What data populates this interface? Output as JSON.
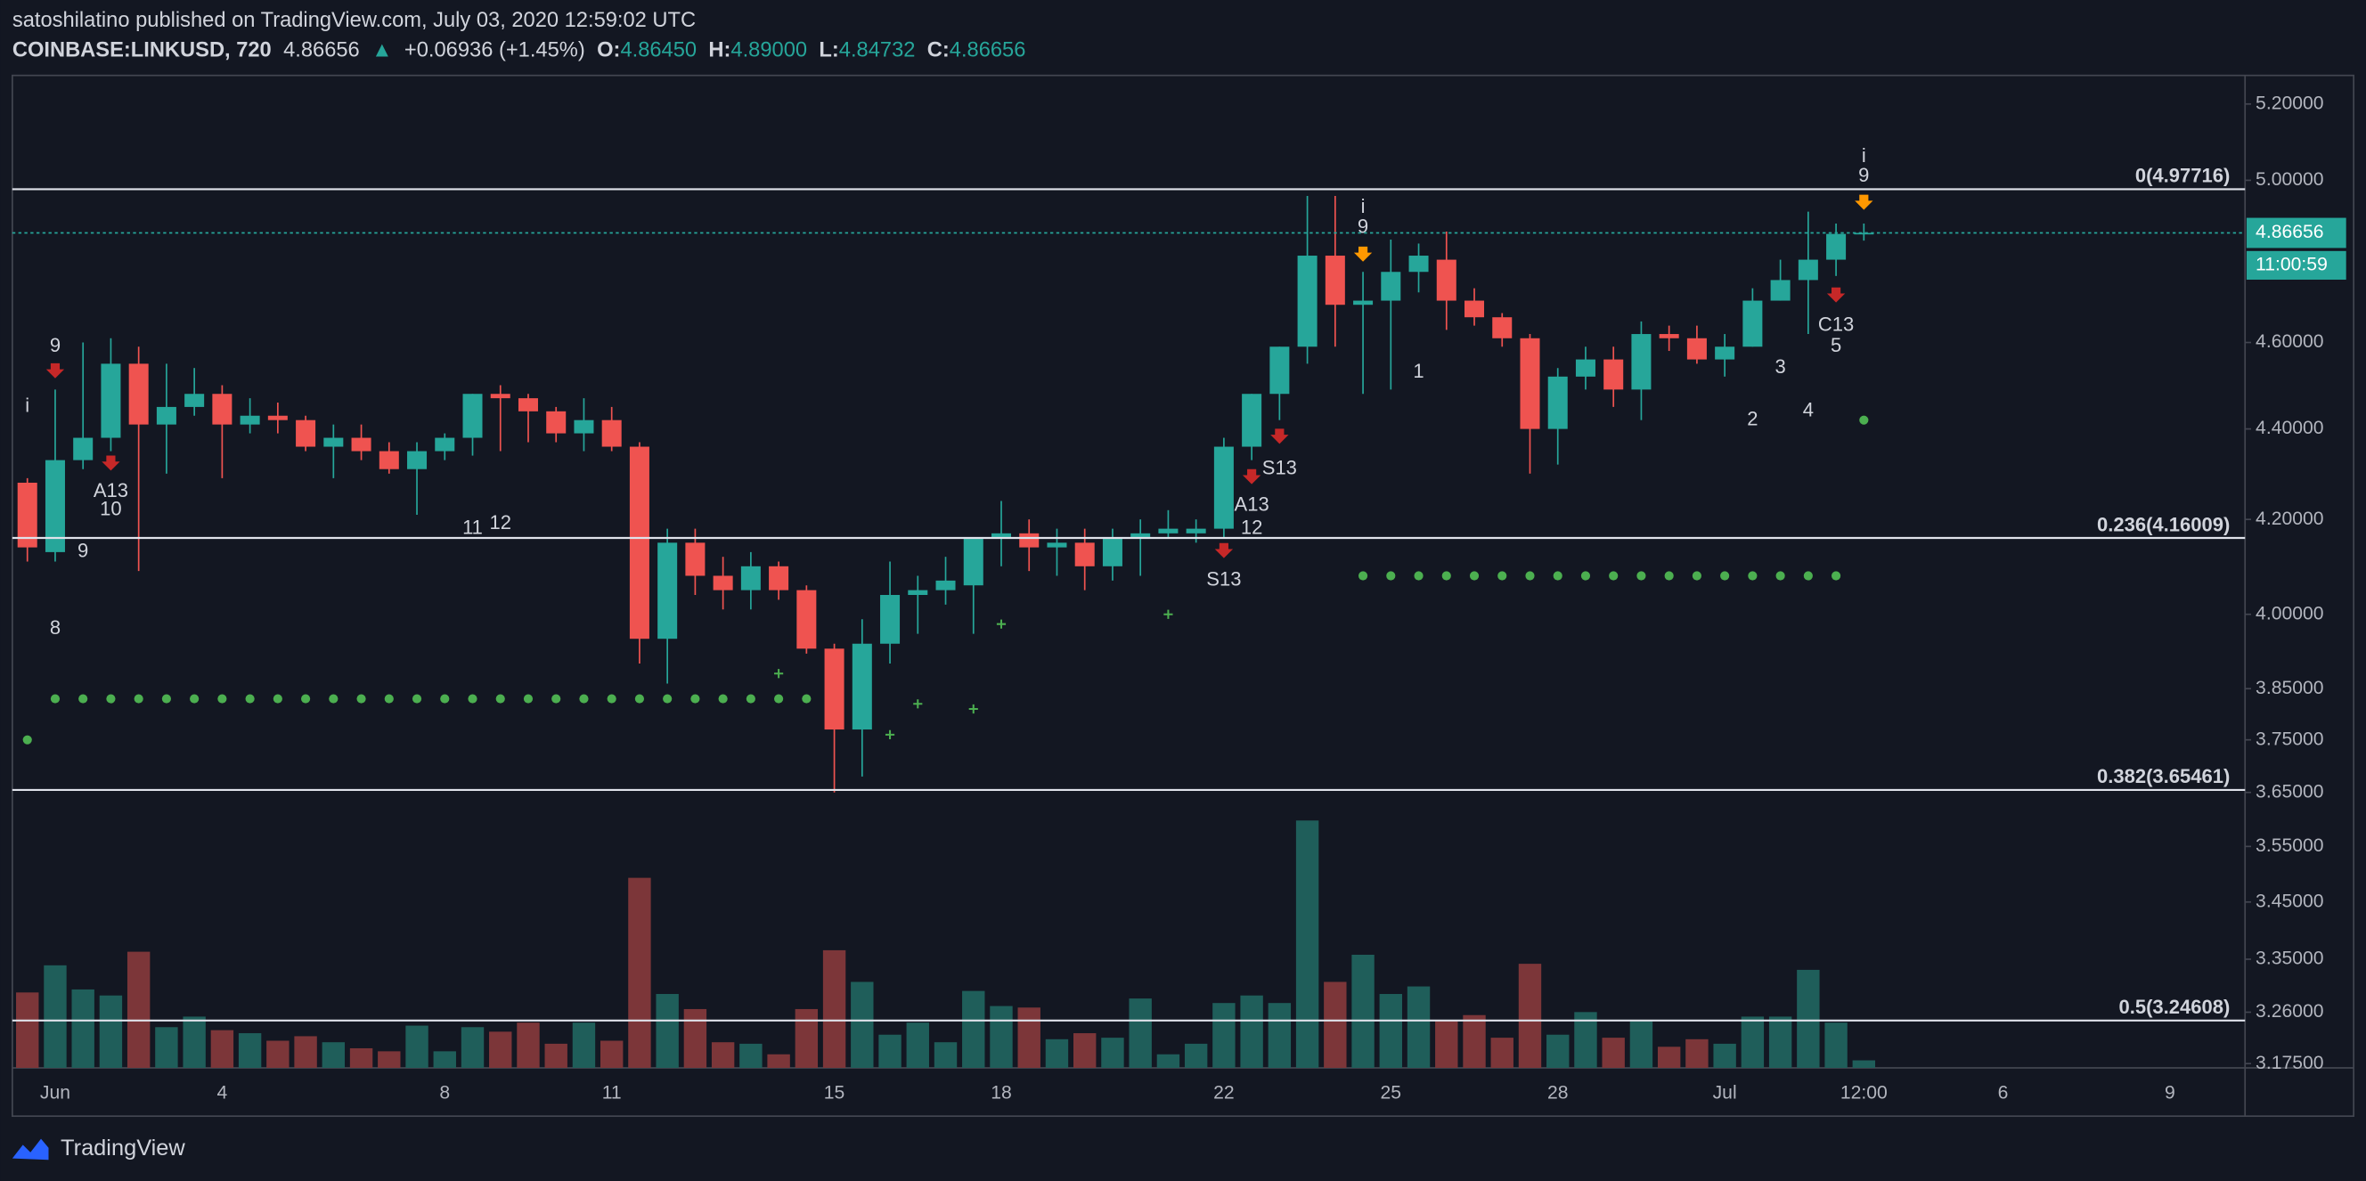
{
  "header": {
    "publisher": "satoshilatino published on TradingView.com, July 03, 2020 12:59:02 UTC",
    "symbol": "COINBASE:LINKUSD, 720",
    "price": "4.86656",
    "arrow": "▲",
    "change": "+0.06936 (+1.45%)",
    "ohlc": [
      {
        "key": "O:",
        "value": "4.86450"
      },
      {
        "key": "H:",
        "value": "4.89000"
      },
      {
        "key": "L:",
        "value": "4.84732"
      },
      {
        "key": "C:",
        "value": "4.86656"
      }
    ]
  },
  "footer": {
    "brand": "TradingView"
  },
  "chart_data": {
    "type": "candlestick",
    "log_scale": true,
    "up_color": "#26a69a",
    "down_color": "#ef5350",
    "volume_up_color": "#1f5e5a",
    "volume_down_color": "#7c3639",
    "categories": [
      null,
      "Jun",
      null,
      null,
      null,
      null,
      null,
      "4",
      null,
      null,
      null,
      null,
      null,
      null,
      null,
      "8",
      null,
      null,
      null,
      null,
      null,
      "11",
      null,
      null,
      null,
      null,
      null,
      null,
      null,
      "15",
      null,
      null,
      null,
      null,
      null,
      "18",
      null,
      null,
      null,
      null,
      null,
      null,
      null,
      "22",
      null,
      null,
      null,
      null,
      null,
      "25",
      null,
      null,
      null,
      null,
      null,
      "28",
      null,
      null,
      null,
      null,
      null,
      "Jul",
      null,
      null,
      null,
      null,
      "12:00",
      null,
      null,
      null,
      null,
      "6",
      null,
      null,
      null,
      null,
      null,
      "9"
    ],
    "open": [
      4.28,
      4.13,
      4.33,
      4.38,
      4.55,
      4.41,
      4.45,
      4.48,
      4.41,
      4.43,
      4.42,
      4.36,
      4.38,
      4.35,
      4.31,
      4.35,
      4.38,
      4.48,
      4.47,
      4.44,
      4.39,
      4.42,
      4.36,
      3.95,
      4.15,
      4.08,
      4.05,
      4.1,
      4.05,
      3.93,
      3.77,
      3.94,
      4.04,
      4.05,
      4.06,
      4.16,
      4.17,
      4.14,
      4.15,
      4.1,
      4.16,
      4.17,
      4.17,
      4.18,
      4.36,
      4.48,
      4.59,
      4.81,
      4.69,
      4.7,
      4.77,
      4.8,
      4.7,
      4.66,
      4.61,
      4.4,
      4.52,
      4.56,
      4.49,
      4.62,
      4.61,
      4.56,
      4.59,
      4.7,
      4.75,
      4.8,
      4.8645,
      null,
      null,
      null,
      null,
      null,
      null,
      null,
      null,
      null,
      null,
      null
    ],
    "high": [
      4.29,
      4.49,
      4.6,
      4.61,
      4.59,
      4.55,
      4.54,
      4.5,
      4.47,
      4.46,
      4.43,
      4.41,
      4.41,
      4.37,
      4.37,
      4.39,
      4.48,
      4.5,
      4.48,
      4.45,
      4.47,
      4.45,
      4.37,
      4.18,
      4.18,
      4.12,
      4.13,
      4.11,
      4.06,
      3.94,
      3.99,
      4.11,
      4.08,
      4.12,
      4.16,
      4.24,
      4.2,
      4.18,
      4.18,
      4.18,
      4.2,
      4.22,
      4.2,
      4.38,
      4.48,
      4.59,
      4.96,
      4.96,
      4.77,
      4.85,
      4.84,
      4.87,
      4.73,
      4.67,
      4.62,
      4.54,
      4.59,
      4.59,
      4.65,
      4.64,
      4.64,
      4.62,
      4.73,
      4.8,
      4.92,
      4.89,
      4.89,
      null,
      null,
      null,
      null,
      null,
      null,
      null,
      null,
      null,
      null,
      null
    ],
    "low": [
      4.11,
      4.11,
      4.31,
      4.35,
      4.09,
      4.3,
      4.43,
      4.29,
      4.39,
      4.39,
      4.35,
      4.29,
      4.33,
      4.3,
      4.21,
      4.33,
      4.34,
      4.35,
      4.37,
      4.37,
      4.35,
      4.35,
      3.9,
      3.86,
      4.04,
      4.01,
      4.01,
      4.03,
      3.92,
      3.65,
      3.68,
      3.9,
      3.96,
      4.02,
      3.96,
      4.1,
      4.09,
      4.08,
      4.05,
      4.07,
      4.08,
      4.16,
      4.15,
      4.16,
      4.33,
      4.42,
      4.55,
      4.59,
      4.48,
      4.49,
      4.72,
      4.63,
      4.64,
      4.59,
      4.3,
      4.32,
      4.49,
      4.45,
      4.42,
      4.58,
      4.55,
      4.52,
      4.59,
      4.7,
      4.62,
      4.76,
      4.84732,
      null,
      null,
      null,
      null,
      null,
      null,
      null,
      null,
      null,
      null,
      null
    ],
    "close": [
      4.14,
      4.33,
      4.38,
      4.55,
      4.41,
      4.45,
      4.48,
      4.41,
      4.43,
      4.42,
      4.36,
      4.38,
      4.35,
      4.31,
      4.35,
      4.38,
      4.48,
      4.47,
      4.44,
      4.39,
      4.42,
      4.36,
      3.95,
      4.15,
      4.08,
      4.05,
      4.1,
      4.05,
      3.93,
      3.77,
      3.94,
      4.04,
      4.05,
      4.07,
      4.16,
      4.17,
      4.14,
      4.15,
      4.1,
      4.16,
      4.17,
      4.18,
      4.18,
      4.36,
      4.48,
      4.59,
      4.81,
      4.69,
      4.7,
      4.77,
      4.81,
      4.7,
      4.66,
      4.61,
      4.4,
      4.52,
      4.56,
      4.49,
      4.62,
      4.61,
      4.56,
      4.59,
      4.7,
      4.75,
      4.8,
      4.864,
      4.86656,
      null,
      null,
      null,
      null,
      null,
      null,
      null,
      null,
      null,
      null,
      null
    ],
    "volume": [
      50,
      68,
      52,
      48,
      77,
      27,
      34,
      25,
      23,
      18,
      21,
      17,
      13,
      11,
      28,
      11,
      27,
      24,
      30,
      16,
      30,
      18,
      126,
      49,
      39,
      17,
      16,
      9,
      39,
      78,
      57,
      22,
      30,
      17,
      51,
      41,
      40,
      19,
      23,
      20,
      46,
      9,
      16,
      43,
      48,
      43,
      164,
      57,
      75,
      49,
      54,
      31,
      35,
      20,
      69,
      22,
      37,
      20,
      31,
      14,
      19,
      16,
      34,
      34,
      65,
      30,
      5,
      null,
      null,
      null,
      null,
      null,
      null,
      null,
      null,
      null,
      null,
      null
    ],
    "ylim": [
      3.168,
      5.277
    ],
    "y2lim": [
      0,
      658
    ],
    "yticks": [
      {
        "value": 5.2,
        "label": "5.20000"
      },
      {
        "value": 5.0,
        "label": "5.00000"
      },
      {
        "value": 4.6,
        "label": "4.60000"
      },
      {
        "value": 4.4,
        "label": "4.40000"
      },
      {
        "value": 4.2,
        "label": "4.20000"
      },
      {
        "value": 4.0,
        "label": "4.00000"
      },
      {
        "value": 3.85,
        "label": "3.85000"
      },
      {
        "value": 3.75,
        "label": "3.75000"
      },
      {
        "value": 3.65,
        "label": "3.65000"
      },
      {
        "value": 3.55,
        "label": "3.55000"
      },
      {
        "value": 3.45,
        "label": "3.45000"
      },
      {
        "value": 3.35,
        "label": "3.35000"
      },
      {
        "value": 3.26,
        "label": "3.26000"
      },
      {
        "value": 3.175,
        "label": "3.17500"
      }
    ],
    "fib_levels": [
      {
        "label": "0(4.97716)",
        "value": 4.97716
      },
      {
        "label": "0.236(4.16009)",
        "value": 4.16009
      },
      {
        "label": "0.382(3.65461)",
        "value": 3.65461
      },
      {
        "label": "0.5(3.24608)",
        "value": 3.24608
      }
    ],
    "last_price": 4.86656,
    "countdown": "11:00:59",
    "dot_levels": [
      {
        "price": 3.83,
        "start": 1,
        "end": 28
      },
      {
        "price": 4.08,
        "start": 48,
        "end": 65
      },
      {
        "price": 3.75,
        "start": 0,
        "end": 0
      },
      {
        "price": 4.42,
        "start": 66,
        "end": 66
      }
    ],
    "dot_color": "#4caf50",
    "crosses": [
      {
        "at": 27,
        "price": 3.88
      },
      {
        "at": 31,
        "price": 3.76
      },
      {
        "at": 32,
        "price": 3.82
      },
      {
        "at": 34,
        "price": 3.81
      },
      {
        "at": 35,
        "price": 3.98
      },
      {
        "at": 41,
        "price": 4.0
      }
    ],
    "annotations": [
      {
        "at": 1,
        "price": 4.59,
        "text": "9",
        "color": "#4caf50"
      },
      {
        "at": 1,
        "price": 4.53,
        "marker": "arrow",
        "color": "#c62828"
      },
      {
        "at": 0,
        "price": 4.45,
        "text": "i",
        "color": "#ff9800"
      },
      {
        "at": 3,
        "price": 4.32,
        "marker": "arrow",
        "color": "#c62828"
      },
      {
        "at": 3,
        "price": 4.26,
        "text": "A13",
        "color": "#2196f3"
      },
      {
        "at": 3,
        "price": 4.22,
        "text": "10",
        "color": "#4caf50"
      },
      {
        "at": 2,
        "price": 4.13,
        "text": "9",
        "color": "#4caf50"
      },
      {
        "at": 1,
        "price": 3.97,
        "text": "8",
        "color": "#4caf50"
      },
      {
        "at": 16,
        "price": 4.18,
        "text": "11",
        "color": "#4caf50"
      },
      {
        "at": 17,
        "price": 4.19,
        "text": "12",
        "color": "#4caf50"
      },
      {
        "at": 48,
        "price": 4.93,
        "text": "i",
        "color": "#ff9800"
      },
      {
        "at": 48,
        "price": 4.88,
        "text": "9",
        "color": "#4caf50"
      },
      {
        "at": 48,
        "price": 4.81,
        "marker": "arrow",
        "color": "#ff9800"
      },
      {
        "at": 50,
        "price": 4.53,
        "text": "1",
        "color": "#4caf50"
      },
      {
        "at": 45,
        "price": 4.38,
        "marker": "arrow",
        "color": "#c62828"
      },
      {
        "at": 45,
        "price": 4.31,
        "text": "S13",
        "color": "#ff9800"
      },
      {
        "at": 44,
        "price": 4.29,
        "marker": "arrow",
        "color": "#c62828"
      },
      {
        "at": 44,
        "price": 4.23,
        "text": "A13",
        "color": "#2196f3"
      },
      {
        "at": 44,
        "price": 4.18,
        "text": "12",
        "color": "#4caf50"
      },
      {
        "at": 43,
        "price": 4.13,
        "marker": "arrow",
        "color": "#c62828"
      },
      {
        "at": 43,
        "price": 4.07,
        "text": "S13",
        "color": "#ff9800"
      },
      {
        "at": 62,
        "price": 4.42,
        "text": "2",
        "color": "#4caf50"
      },
      {
        "at": 63,
        "price": 4.54,
        "text": "3",
        "color": "#4caf50"
      },
      {
        "at": 64,
        "price": 4.44,
        "text": "4",
        "color": "#4caf50"
      },
      {
        "at": 65,
        "price": 4.59,
        "text": "5",
        "color": "#4caf50"
      },
      {
        "at": 65,
        "price": 4.64,
        "text": "C13",
        "color": "#e040fb"
      },
      {
        "at": 65,
        "price": 4.71,
        "marker": "arrow",
        "color": "#c62828"
      },
      {
        "at": 66,
        "price": 5.06,
        "text": "i",
        "color": "#ff9800"
      },
      {
        "at": 66,
        "price": 5.01,
        "text": "9",
        "color": "#4caf50"
      },
      {
        "at": 66,
        "price": 4.94,
        "marker": "arrow",
        "color": "#ff9800"
      }
    ]
  }
}
